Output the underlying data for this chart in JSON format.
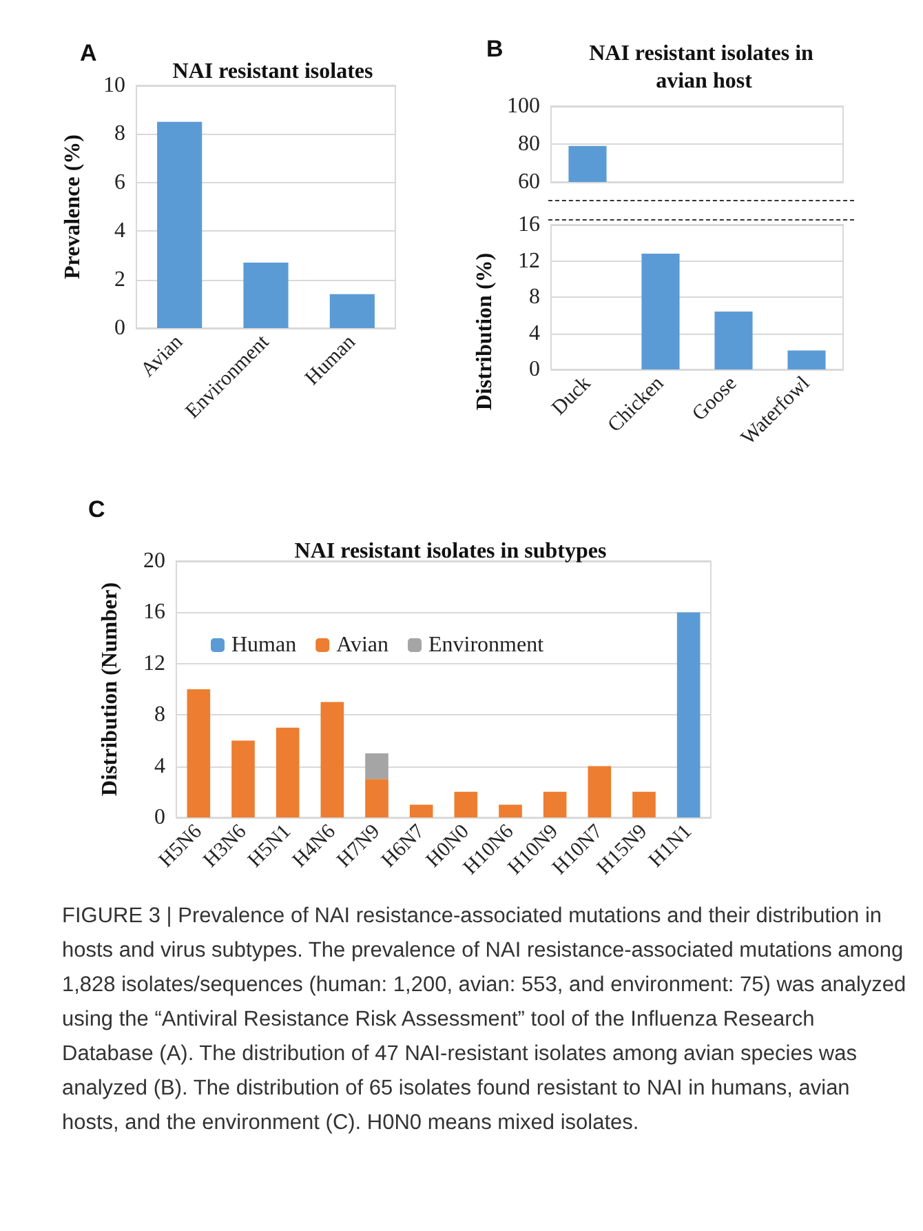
{
  "chart_data": [
    {
      "type": "bar",
      "title": "NAI resistant isolates",
      "ylabel": "Prevalence (%)",
      "annotations": [
        "A"
      ],
      "categories": [
        "Avian",
        "Environment",
        "Human"
      ],
      "values": [
        8.5,
        2.7,
        1.4
      ],
      "color": "#5b9bd5",
      "ylim": [
        0,
        10
      ],
      "yticks": [
        0,
        2,
        4,
        6,
        8,
        10
      ],
      "grid": "y",
      "legend": false
    },
    {
      "type": "bar",
      "title": "NAI resistant isolates in avian host",
      "annotations": [
        "B"
      ],
      "categories": [
        "Duck",
        "Chicken",
        "Goose",
        "Waterfowl"
      ],
      "values": [
        79,
        null,
        null,
        null
      ],
      "color": "#5b9bd5",
      "ylim": [
        60,
        100
      ],
      "yticks": [
        60,
        80,
        100
      ],
      "grid": "y",
      "legend": false,
      "tick_labels": "y"
    },
    {
      "type": "bar",
      "ylabel": "Distribution (%)",
      "categories": [
        "Duck",
        "Chicken",
        "Goose",
        "Waterfowl"
      ],
      "values": [
        null,
        12.8,
        6.4,
        2.1
      ],
      "color": "#5b9bd5",
      "ylim": [
        0,
        16
      ],
      "yticks": [
        0,
        4,
        8,
        12,
        16
      ],
      "grid": "y",
      "legend": false
    },
    {
      "type": "bar",
      "title": "NAI resistant isolates in subtypes",
      "ylabel": "Distribution (Number)",
      "annotations": [
        "C",
        "FIGURE 3 | Prevalence of NAI resistance-associated mutations and their distribution in hosts and virus subtypes. The prevalence of NAI resistance-associated mutations among 1,828 isolates/sequences (human: 1,200, avian: 553, and environment: 75) was analyzed using the “Antiviral Resistance Risk Assessment” tool of the Influenza Research Database (A). The distribution of 47 NAI-resistant isolates among avian species was analyzed (B). The distribution of 65 isolates found resistant to NAI in humans, avian hosts, and the environment (C). H0N0 means mixed isolates."
      ],
      "categories": [
        "H5N6",
        "H3N6",
        "H5N1",
        "H4N6",
        "H7N9",
        "H6N7",
        "H0N0",
        "H10N6",
        "H10N9",
        "H10N7",
        "H15N9",
        "H1N1"
      ],
      "stacked": true,
      "series": [
        {
          "name": "Human",
          "color": "#5b9bd5",
          "values": [
            null,
            null,
            null,
            null,
            null,
            null,
            null,
            null,
            null,
            null,
            null,
            16
          ]
        },
        {
          "name": "Avian",
          "color": "#ed7d31",
          "values": [
            10,
            6,
            7,
            9,
            3,
            1,
            2,
            1,
            2,
            4,
            2,
            null
          ]
        },
        {
          "name": "Environment",
          "color": "#a5a5a5",
          "values": [
            null,
            null,
            null,
            null,
            2,
            null,
            null,
            null,
            null,
            null,
            null,
            null
          ]
        }
      ],
      "ylim": [
        0,
        20
      ],
      "yticks": [
        0,
        4,
        8,
        12,
        16,
        20
      ],
      "grid": "y",
      "legend": "top"
    }
  ]
}
